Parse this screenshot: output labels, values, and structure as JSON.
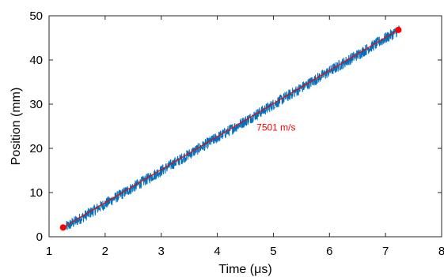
{
  "chart_data": {
    "type": "line",
    "title": "",
    "xlabel": "Time (μs)",
    "ylabel": "Position (mm)",
    "xlim": [
      1,
      8
    ],
    "ylim": [
      0,
      50
    ],
    "xticks": [
      "1",
      "2",
      "3",
      "4",
      "5",
      "6",
      "7",
      "8"
    ],
    "yticks": [
      "0",
      "10",
      "20",
      "30",
      "40",
      "50"
    ],
    "grid": false,
    "box": true,
    "series": [
      {
        "kind": "noisy-trace",
        "color": "#0072BD",
        "x_start": 1.3,
        "x_end": 7.25,
        "y_start": 2.2,
        "y_end": 46.8
      },
      {
        "kind": "linear-fit",
        "color": "#FF0000",
        "x": [
          1.25,
          7.23
        ],
        "y": [
          2.1,
          46.8
        ]
      }
    ],
    "annotations": [
      {
        "text": "7501 m/s",
        "x": 4.7,
        "y": 24.0,
        "color": "#FF0000"
      }
    ]
  }
}
